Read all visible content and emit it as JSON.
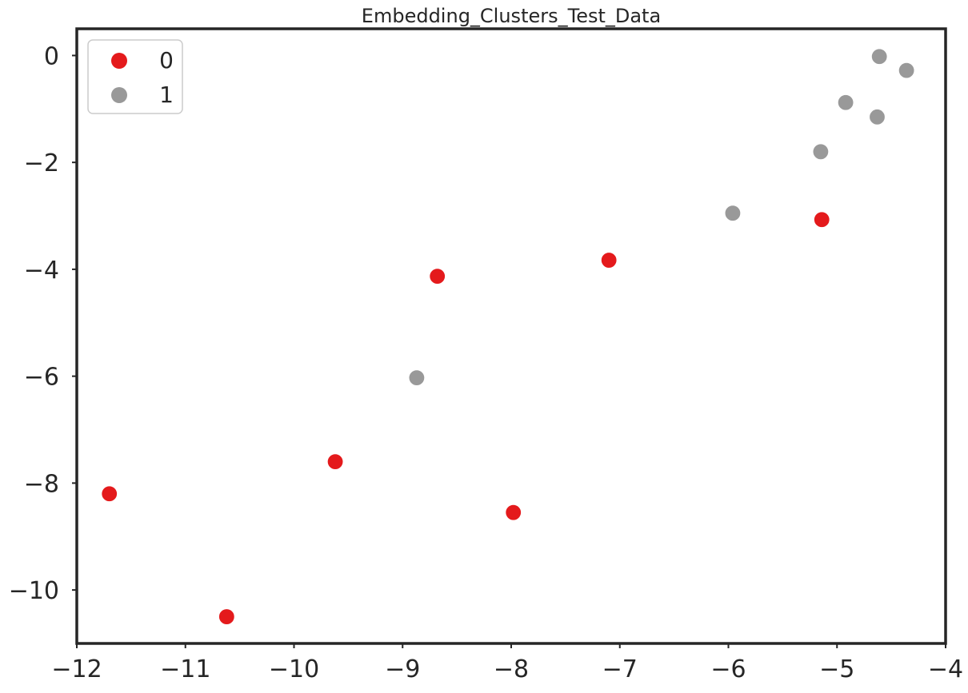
{
  "chart_data": {
    "type": "scatter",
    "title": "Embedding_Clusters_Test_Data",
    "xlabel": "",
    "ylabel": "",
    "xlim": [
      -12,
      -4
    ],
    "ylim": [
      -11,
      0.5
    ],
    "x_ticks": [
      -12,
      -11,
      -10,
      -9,
      -8,
      -7,
      -6,
      -5,
      -4
    ],
    "y_ticks": [
      0,
      -2,
      -4,
      -6,
      -8,
      -10
    ],
    "x_tick_labels": [
      "−12",
      "−11",
      "−10",
      "−9",
      "−8",
      "−7",
      "−6",
      "−5",
      "−4"
    ],
    "y_tick_labels": [
      "0",
      "−2",
      "−4",
      "−6",
      "−8",
      "−10"
    ],
    "grid": false,
    "legend_position": "top-left",
    "series": [
      {
        "name": "0",
        "color": "#e41a1c",
        "points": [
          {
            "x": -11.7,
            "y": -8.2
          },
          {
            "x": -10.62,
            "y": -10.5
          },
          {
            "x": -9.62,
            "y": -7.6
          },
          {
            "x": -8.68,
            "y": -4.13
          },
          {
            "x": -7.98,
            "y": -8.55
          },
          {
            "x": -7.1,
            "y": -3.83
          },
          {
            "x": -5.14,
            "y": -3.07
          }
        ]
      },
      {
        "name": "1",
        "color": "#999999",
        "points": [
          {
            "x": -8.87,
            "y": -6.03
          },
          {
            "x": -5.96,
            "y": -2.95
          },
          {
            "x": -5.15,
            "y": -1.8
          },
          {
            "x": -4.92,
            "y": -0.88
          },
          {
            "x": -4.63,
            "y": -1.15
          },
          {
            "x": -4.61,
            "y": -0.02
          },
          {
            "x": -4.36,
            "y": -0.28
          }
        ]
      }
    ]
  }
}
